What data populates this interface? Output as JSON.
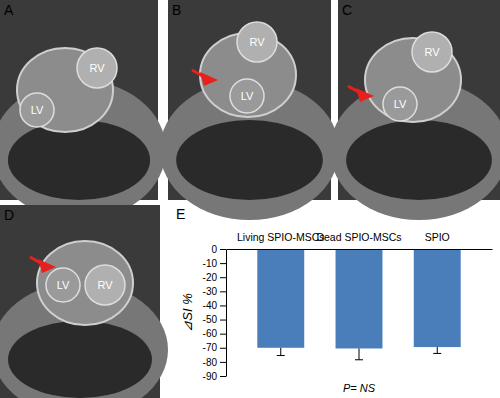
{
  "image_panels": [
    {
      "label": "A",
      "regions": [
        "LV",
        "RV"
      ],
      "arrow": false
    },
    {
      "label": "B",
      "regions": [
        "RV",
        "LV"
      ],
      "arrow": true
    },
    {
      "label": "C",
      "regions": [
        "RV",
        "LV"
      ],
      "arrow": true
    },
    {
      "label": "D",
      "regions": [
        "LV",
        "RV"
      ],
      "arrow": true
    }
  ],
  "chart_data": {
    "type": "bar",
    "panel_label": "E",
    "categories": [
      "Living SPIO-MSCs",
      "Dead SPIO-MSCs",
      "SPIO"
    ],
    "values": [
      -70,
      -70.5,
      -69.5
    ],
    "errors": [
      5.5,
      8,
      4.5
    ],
    "color": "#4a7ebb",
    "y_label": "⊿SI %",
    "annotation": "P= NS",
    "ylim": [
      -90,
      0
    ],
    "yticks": [
      -90,
      -80,
      -70,
      -60,
      -50,
      -40,
      -30,
      -20,
      -10,
      0
    ]
  }
}
